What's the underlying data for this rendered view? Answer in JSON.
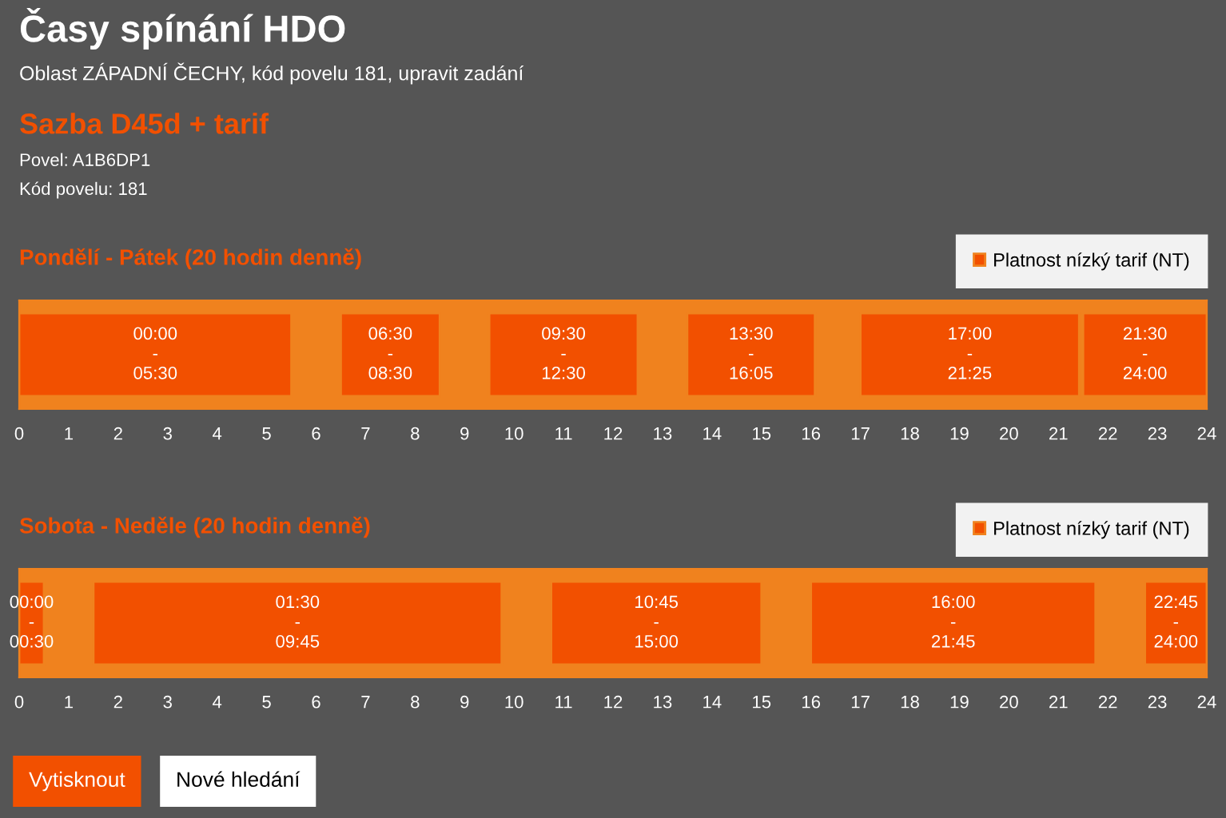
{
  "chart_data": [
    {
      "type": "other",
      "title": "Časy spínání HDO",
      "subtitle": "Oblast ZÁPADNÍ ČECHY, kód povelu 181, upravit zadání",
      "annotations": [
        "Sazba D45d + tarif",
        "Povel: A1B6DP1",
        "Kód povelu: 181"
      ]
    },
    {
      "type": "bar",
      "orientation": "horizontal",
      "title": "Pondělí - Pátek (20 hodin denně)",
      "categories": [
        null
      ],
      "xlim": [
        0,
        24
      ],
      "xticks": [
        0,
        1,
        2,
        3,
        4,
        5,
        6,
        7,
        8,
        9,
        10,
        11,
        12,
        13,
        14,
        15,
        16,
        17,
        18,
        19,
        20,
        21,
        22,
        23,
        24
      ],
      "legend": "top right",
      "series": [
        {
          "name": "Platnost nízký tarif (NT)",
          "color": "#f25000",
          "base": [
            0
          ],
          "values": [
            5.5
          ],
          "value_labels": [
            "00:00\n-\n05:30"
          ]
        },
        {
          "color": "#f25000",
          "base": [
            6.5
          ],
          "values": [
            2
          ],
          "value_labels": [
            "06:30\n-\n08:30"
          ]
        },
        {
          "color": "#f25000",
          "base": [
            9.5
          ],
          "values": [
            3
          ],
          "value_labels": [
            "09:30\n-\n12:30"
          ]
        },
        {
          "color": "#f25000",
          "base": [
            13.5
          ],
          "values": [
            2.58
          ],
          "value_labels": [
            "13:30\n-\n16:05"
          ]
        },
        {
          "color": "#f25000",
          "base": [
            17
          ],
          "values": [
            4.42
          ],
          "value_labels": [
            "17:00\n-\n21:25"
          ]
        },
        {
          "color": "#f25000",
          "base": [
            21.5
          ],
          "values": [
            2.5
          ],
          "value_labels": [
            "21:30\n-\n24:00"
          ]
        }
      ]
    },
    {
      "type": "bar",
      "orientation": "horizontal",
      "title": "Sobota - Neděle (20 hodin denně)",
      "categories": [
        null
      ],
      "xlim": [
        0,
        24
      ],
      "xticks": [
        0,
        1,
        2,
        3,
        4,
        5,
        6,
        7,
        8,
        9,
        10,
        11,
        12,
        13,
        14,
        15,
        16,
        17,
        18,
        19,
        20,
        21,
        22,
        23,
        24
      ],
      "legend": "top right",
      "series": [
        {
          "name": "Platnost nízký tarif (NT)",
          "color": "#f25000",
          "base": [
            0
          ],
          "values": [
            0.5
          ],
          "value_labels": [
            "00:00\n-\n00:30"
          ]
        },
        {
          "color": "#f25000",
          "base": [
            1.5
          ],
          "values": [
            8.25
          ],
          "value_labels": [
            "01:30\n-\n09:45"
          ]
        },
        {
          "color": "#f25000",
          "base": [
            10.75
          ],
          "values": [
            4.25
          ],
          "value_labels": [
            "10:45\n-\n15:00"
          ]
        },
        {
          "color": "#f25000",
          "base": [
            16
          ],
          "values": [
            5.75
          ],
          "value_labels": [
            "16:00\n-\n21:45"
          ]
        },
        {
          "color": "#f25000",
          "base": [
            22.75
          ],
          "values": [
            1.25
          ],
          "value_labels": [
            "22:45\n-\n24:00"
          ]
        }
      ]
    },
    {
      "type": "other",
      "annotations": [
        "Vytisknout",
        "Nové hledání"
      ]
    }
  ]
}
